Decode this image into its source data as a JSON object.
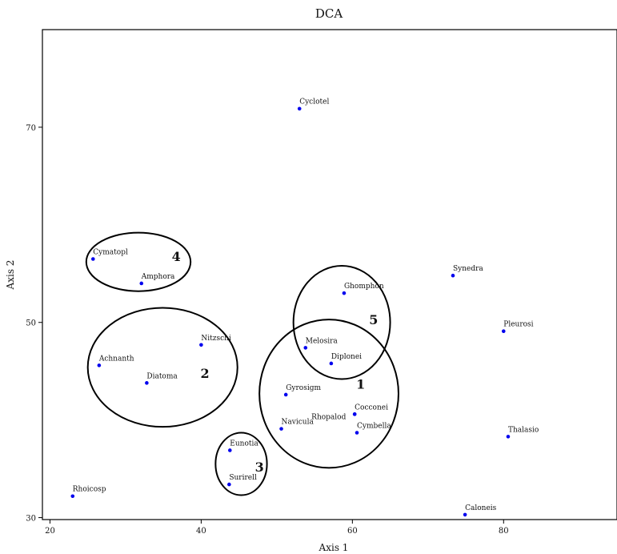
{
  "chart_data": {
    "type": "scatter",
    "title": "DCA",
    "xlabel": "Axis 1",
    "ylabel": "Axis 2",
    "xlim": [
      19,
      95
    ],
    "ylim": [
      29.8,
      80
    ],
    "xticks": [
      20,
      40,
      60,
      80
    ],
    "yticks": [
      30,
      50,
      70
    ],
    "marker_color": "#0000ee",
    "points": [
      {
        "label": "Cyclotel",
        "x": 53.0,
        "y": 71.9
      },
      {
        "label": "Cymatopl",
        "x": 25.7,
        "y": 56.5
      },
      {
        "label": "Amphora",
        "x": 32.1,
        "y": 54.0
      },
      {
        "label": "Synedra",
        "x": 73.3,
        "y": 54.8
      },
      {
        "label": "Ghomphon",
        "x": 58.9,
        "y": 53.0
      },
      {
        "label": "Pleurosi",
        "x": 80.0,
        "y": 49.1
      },
      {
        "label": "Nitzschi",
        "x": 40.0,
        "y": 47.7
      },
      {
        "label": "Melosira",
        "x": 53.8,
        "y": 47.4
      },
      {
        "label": "Achnanth",
        "x": 26.5,
        "y": 45.6
      },
      {
        "label": "Diplonei",
        "x": 57.2,
        "y": 45.8
      },
      {
        "label": "Diatoma",
        "x": 32.8,
        "y": 43.8
      },
      {
        "label": "Gyrosigm",
        "x": 51.2,
        "y": 42.6
      },
      {
        "label": "Cocconei",
        "x": 60.3,
        "y": 40.6
      },
      {
        "label": "Rhopalod",
        "x": 60.3,
        "y": 40.6
      },
      {
        "label": "Navicula",
        "x": 50.6,
        "y": 39.1
      },
      {
        "label": "Cymbella",
        "x": 60.6,
        "y": 38.7
      },
      {
        "label": "Thalasio",
        "x": 80.6,
        "y": 38.3
      },
      {
        "label": "Eunotia",
        "x": 43.8,
        "y": 36.9
      },
      {
        "label": "Surirell",
        "x": 43.7,
        "y": 33.4
      },
      {
        "label": "Rhoicosp",
        "x": 23.0,
        "y": 32.2
      },
      {
        "label": "Caloneis",
        "x": 74.9,
        "y": 30.3
      }
    ],
    "clusters": [
      {
        "label": "1",
        "cx": 56.9,
        "cy": 42.7,
        "rx": 9.2,
        "ry": 7.6
      },
      {
        "label": "2",
        "cx": 34.9,
        "cy": 45.4,
        "rx": 9.9,
        "ry": 6.1
      },
      {
        "label": "3",
        "cx": 45.3,
        "cy": 35.5,
        "rx": 3.4,
        "ry": 3.2
      },
      {
        "label": "4",
        "cx": 31.7,
        "cy": 56.2,
        "rx": 6.9,
        "ry": 3.0
      },
      {
        "label": "5",
        "cx": 58.6,
        "cy": 50.0,
        "rx": 6.4,
        "ry": 5.8
      }
    ]
  }
}
